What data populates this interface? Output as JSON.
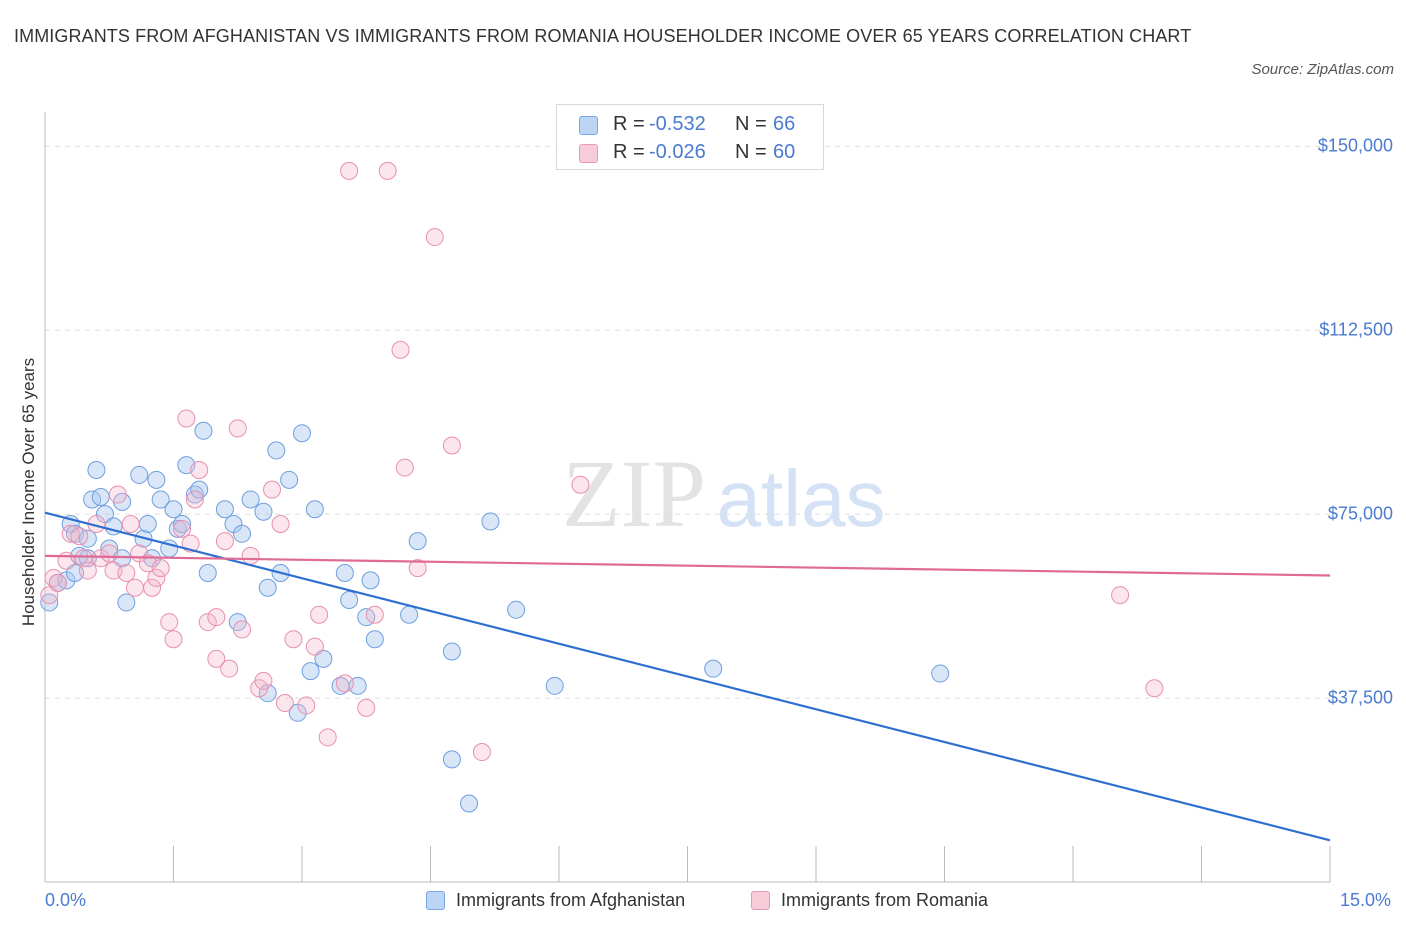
{
  "title": "IMMIGRANTS FROM AFGHANISTAN VS IMMIGRANTS FROM ROMANIA HOUSEHOLDER INCOME OVER 65 YEARS CORRELATION CHART",
  "source": "Source: ZipAtlas.com",
  "watermark": {
    "zip": "ZIP",
    "atlas": "atlas"
  },
  "colors": {
    "blue": "#a8c8f0",
    "blue_line": "#2f6fd0",
    "pink": "#f4b8cc",
    "pink_line": "#e06a95",
    "tick_text": "#4a7bd0"
  },
  "legend_top": {
    "rows": [
      {
        "r_label": "R =",
        "r_value": "-0.532",
        "n_label": "N =",
        "n_value": "66"
      },
      {
        "r_label": "R =",
        "r_value": "-0.026",
        "n_label": "N =",
        "n_value": "60"
      }
    ]
  },
  "legend_bottom": [
    "Immigrants from Afghanistan",
    "Immigrants from Romania"
  ],
  "chart_data": {
    "type": "scatter",
    "xlabel": "",
    "ylabel": "Householder Income Over 65 years",
    "xlim": [
      0,
      15
    ],
    "ylim": [
      0,
      157000
    ],
    "x_tick_labels": [
      "0.0%",
      "15.0%"
    ],
    "y_ticks": [
      37500,
      75000,
      112500,
      150000
    ],
    "y_tick_labels": [
      "$37,500",
      "$75,000",
      "$112,500",
      "$150,000"
    ],
    "grid": true,
    "legend_position": "top-center",
    "series": [
      {
        "name": "Immigrants from Afghanistan",
        "color": "#a8c8f0",
        "trend": {
          "x": [
            0,
            15
          ],
          "y": [
            75300,
            8500
          ]
        },
        "points": [
          [
            0.05,
            57000
          ],
          [
            0.15,
            61000
          ],
          [
            0.25,
            61500
          ],
          [
            0.3,
            73000
          ],
          [
            0.35,
            71000
          ],
          [
            0.35,
            63000
          ],
          [
            0.4,
            66500
          ],
          [
            0.5,
            66000
          ],
          [
            0.5,
            70000
          ],
          [
            0.55,
            78000
          ],
          [
            0.6,
            84000
          ],
          [
            0.65,
            78500
          ],
          [
            0.7,
            75000
          ],
          [
            0.75,
            68000
          ],
          [
            0.8,
            72500
          ],
          [
            0.9,
            77500
          ],
          [
            0.9,
            66000
          ],
          [
            0.95,
            57000
          ],
          [
            1.1,
            83000
          ],
          [
            1.15,
            70000
          ],
          [
            1.2,
            73000
          ],
          [
            1.25,
            66000
          ],
          [
            1.3,
            82000
          ],
          [
            1.35,
            78000
          ],
          [
            1.45,
            68000
          ],
          [
            1.5,
            76000
          ],
          [
            1.55,
            72000
          ],
          [
            1.6,
            73000
          ],
          [
            1.65,
            85000
          ],
          [
            1.75,
            79000
          ],
          [
            1.8,
            80000
          ],
          [
            1.85,
            92000
          ],
          [
            1.9,
            63000
          ],
          [
            2.1,
            76000
          ],
          [
            2.2,
            73000
          ],
          [
            2.25,
            53000
          ],
          [
            2.3,
            71000
          ],
          [
            2.4,
            78000
          ],
          [
            2.55,
            75500
          ],
          [
            2.6,
            60000
          ],
          [
            2.7,
            88000
          ],
          [
            2.75,
            63000
          ],
          [
            2.85,
            82000
          ],
          [
            2.6,
            38500
          ],
          [
            2.95,
            34500
          ],
          [
            3.0,
            91500
          ],
          [
            3.1,
            43000
          ],
          [
            3.15,
            76000
          ],
          [
            3.25,
            45500
          ],
          [
            3.45,
            40000
          ],
          [
            3.5,
            63000
          ],
          [
            3.55,
            57500
          ],
          [
            3.65,
            40000
          ],
          [
            3.75,
            54000
          ],
          [
            3.8,
            61500
          ],
          [
            3.85,
            49500
          ],
          [
            4.25,
            54500
          ],
          [
            4.35,
            69500
          ],
          [
            4.75,
            47000
          ],
          [
            4.75,
            25000
          ],
          [
            4.95,
            16000
          ],
          [
            5.2,
            73500
          ],
          [
            5.5,
            55500
          ],
          [
            5.95,
            40000
          ],
          [
            7.8,
            43500
          ],
          [
            10.45,
            42500
          ]
        ]
      },
      {
        "name": "Immigrants from Romania",
        "color": "#f4b8cc",
        "trend": {
          "x": [
            0,
            15
          ],
          "y": [
            66500,
            62500
          ]
        },
        "points": [
          [
            0.05,
            58500
          ],
          [
            0.1,
            62000
          ],
          [
            0.15,
            61000
          ],
          [
            0.25,
            65500
          ],
          [
            0.3,
            71000
          ],
          [
            0.4,
            70500
          ],
          [
            0.45,
            66000
          ],
          [
            0.5,
            63500
          ],
          [
            0.6,
            73000
          ],
          [
            0.65,
            66000
          ],
          [
            0.75,
            67000
          ],
          [
            0.8,
            63500
          ],
          [
            0.85,
            79000
          ],
          [
            0.95,
            63000
          ],
          [
            1.0,
            73000
          ],
          [
            1.05,
            60000
          ],
          [
            1.1,
            67000
          ],
          [
            1.2,
            65000
          ],
          [
            1.25,
            60000
          ],
          [
            1.3,
            62000
          ],
          [
            1.35,
            64000
          ],
          [
            1.45,
            53000
          ],
          [
            1.5,
            49500
          ],
          [
            1.6,
            72000
          ],
          [
            1.65,
            94500
          ],
          [
            1.7,
            69000
          ],
          [
            1.75,
            78000
          ],
          [
            1.8,
            84000
          ],
          [
            1.9,
            53000
          ],
          [
            2.0,
            54000
          ],
          [
            2.0,
            45500
          ],
          [
            2.1,
            69500
          ],
          [
            2.15,
            43500
          ],
          [
            2.25,
            92500
          ],
          [
            2.3,
            51500
          ],
          [
            2.4,
            66500
          ],
          [
            2.5,
            39500
          ],
          [
            2.55,
            41000
          ],
          [
            2.65,
            80000
          ],
          [
            2.75,
            73000
          ],
          [
            2.8,
            36500
          ],
          [
            2.9,
            49500
          ],
          [
            3.05,
            36000
          ],
          [
            3.15,
            48000
          ],
          [
            3.2,
            54500
          ],
          [
            3.3,
            29500
          ],
          [
            3.5,
            40500
          ],
          [
            3.55,
            145000
          ],
          [
            3.75,
            35500
          ],
          [
            3.85,
            54500
          ],
          [
            4.0,
            145000
          ],
          [
            4.15,
            108500
          ],
          [
            4.2,
            84500
          ],
          [
            4.35,
            64000
          ],
          [
            4.55,
            131500
          ],
          [
            4.75,
            89000
          ],
          [
            5.1,
            26500
          ],
          [
            6.25,
            81000
          ],
          [
            12.55,
            58500
          ],
          [
            12.95,
            39500
          ]
        ]
      }
    ]
  }
}
